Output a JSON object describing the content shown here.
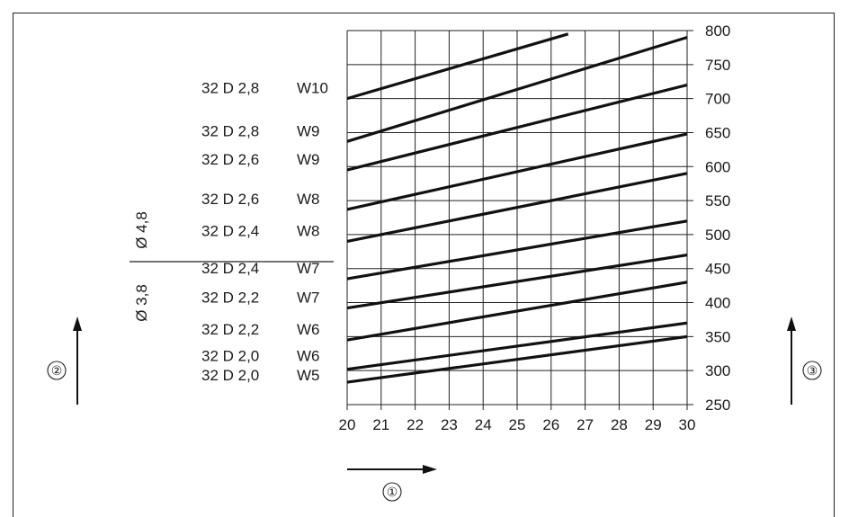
{
  "chart_data": {
    "type": "line",
    "title": "",
    "xlabel": "",
    "ylabel": "",
    "x_ticks": [
      "20",
      "21",
      "22",
      "23",
      "24",
      "25",
      "26",
      "27",
      "28",
      "29",
      "30"
    ],
    "y_ticks": [
      "250",
      "300",
      "350",
      "400",
      "450",
      "500",
      "550",
      "600",
      "650",
      "700",
      "750",
      "800"
    ],
    "xlim": [
      20,
      30
    ],
    "ylim": [
      250,
      800
    ],
    "grid": true,
    "series": [
      {
        "name": "32 D 2,8 W10",
        "x": [
          20,
          26.5
        ],
        "y": [
          700,
          795
        ]
      },
      {
        "name": "32 D 2,8 W9",
        "x": [
          20,
          30
        ],
        "y": [
          637,
          790
        ]
      },
      {
        "name": "32 D 2,6 W9",
        "x": [
          20,
          30
        ],
        "y": [
          595,
          720
        ]
      },
      {
        "name": "32 D 2,6 W8",
        "x": [
          20,
          30
        ],
        "y": [
          537,
          648
        ]
      },
      {
        "name": "32 D 2,4 W8",
        "x": [
          20,
          30
        ],
        "y": [
          490,
          590
        ]
      },
      {
        "name": "32 D 2,4 W7",
        "x": [
          20,
          30
        ],
        "y": [
          435,
          520
        ]
      },
      {
        "name": "32 D 2,2 W7",
        "x": [
          20,
          30
        ],
        "y": [
          392,
          470
        ]
      },
      {
        "name": "32 D 2,2 W6",
        "x": [
          20,
          30
        ],
        "y": [
          345,
          430
        ]
      },
      {
        "name": "32 D 2,0 W6",
        "x": [
          20,
          30
        ],
        "y": [
          302,
          370
        ]
      },
      {
        "name": "32 D 2,0 W5",
        "x": [
          20,
          30
        ],
        "y": [
          283,
          350
        ]
      }
    ],
    "row_labels": [
      {
        "code": "32 D 2,8",
        "w": "W10"
      },
      {
        "code": "32 D 2,8",
        "w": "W9"
      },
      {
        "code": "32 D 2,6",
        "w": "W9"
      },
      {
        "code": "32 D 2,6",
        "w": "W8"
      },
      {
        "code": "32 D 2,4",
        "w": "W8"
      },
      {
        "code": "32 D 2,4",
        "w": "W7"
      },
      {
        "code": "32 D 2,2",
        "w": "W7"
      },
      {
        "code": "32 D 2,2",
        "w": "W6"
      },
      {
        "code": "32 D 2,0",
        "w": "W6"
      },
      {
        "code": "32 D 2,0",
        "w": "W5"
      }
    ],
    "diameter_groups": [
      {
        "label": "Ø 4,8"
      },
      {
        "label": "Ø 3,8"
      }
    ],
    "callouts": [
      "①",
      "②",
      "③"
    ]
  }
}
